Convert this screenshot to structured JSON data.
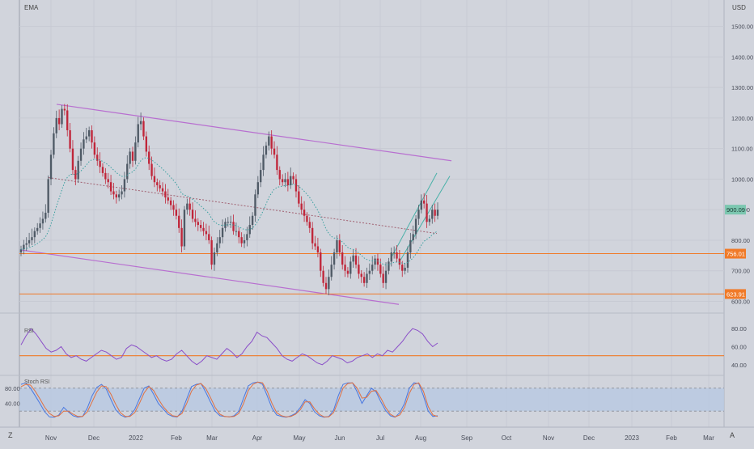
{
  "app": {
    "indicator_label": "EMA",
    "currency": "USD",
    "corner_left": "Z",
    "corner_right": "A"
  },
  "colors": {
    "background": "#d1d4dc",
    "grid": "#c7cad3",
    "axis_text": "#4a4e5a",
    "candle_up": "#4f5a66",
    "candle_down": "#c0263a",
    "channel": "#b86fd0",
    "ema": "#3aa0a0",
    "median": "#a06070",
    "horizontal_level": "#f07a28",
    "rising_channel": "#48b0a8",
    "rsi_line": "#8a4ec8",
    "stoch_k": "#4a78e0",
    "stoch_d": "#e07040",
    "stoch_band": "#b8c8e2",
    "last_price_tag": "#7cc7b0"
  },
  "chart_data": [
    {
      "type": "candlestick",
      "panel": "price",
      "indicators": [
        "EMA"
      ],
      "x_tick_labels": [
        "Nov",
        "Dec",
        "2022",
        "Feb",
        "Mar",
        "Apr",
        "May",
        "Jun",
        "Jul",
        "Aug",
        "Sep",
        "Oct",
        "Nov",
        "Dec",
        "2023",
        "Feb",
        "Mar"
      ],
      "y_tick_labels": [
        "1500.00",
        "1400.00",
        "1300.00",
        "1200.00",
        "1100.00",
        "1000.00",
        "900.00",
        "800.00",
        "700.00",
        "600.00"
      ],
      "y_ticks": [
        1500,
        1400,
        1300,
        1200,
        1100,
        1000,
        900,
        800,
        700,
        600
      ],
      "ylim": [
        580,
        1560
      ],
      "last_price": "900.09",
      "price_levels": [
        {
          "label": "756.01",
          "value": 756.01
        },
        {
          "label": "623.91",
          "value": 623.91
        }
      ],
      "trend_channel": {
        "upper": [
          [
            "Nov",
            1245
          ],
          [
            "Aug end",
            1060
          ]
        ],
        "lower": [
          [
            "Oct",
            765
          ],
          [
            "Jul end",
            590
          ]
        ],
        "median": [
          [
            "Nov",
            1005
          ],
          [
            "Aug end",
            820
          ]
        ]
      },
      "x_range_sessions": [
        0,
        158
      ],
      "closes": [
        770,
        785,
        790,
        800,
        810,
        830,
        840,
        855,
        870,
        890,
        1000,
        1080,
        1150,
        1200,
        1180,
        1230,
        1225,
        1160,
        1100,
        1030,
        1000,
        1060,
        1100,
        1130,
        1140,
        1160,
        1120,
        1080,
        1060,
        1040,
        1020,
        1000,
        990,
        960,
        950,
        940,
        950,
        960,
        1000,
        1050,
        1090,
        1060,
        1120,
        1180,
        1190,
        1140,
        1090,
        1050,
        1010,
        990,
        980,
        970,
        960,
        940,
        930,
        915,
        900,
        880,
        840,
        780,
        900,
        920,
        900,
        870,
        860,
        850,
        840,
        830,
        820,
        800,
        720,
        760,
        790,
        810,
        840,
        860,
        860,
        860,
        830,
        830,
        810,
        790,
        800,
        820,
        850,
        880,
        950,
        990,
        1030,
        1080,
        1110,
        1140,
        1100,
        1080,
        1030,
        1000,
        990,
        1000,
        980,
        1010,
        1000,
        960,
        920,
        900,
        880,
        860,
        840,
        790,
        780,
        760,
        700,
        660,
        640,
        680,
        720,
        760,
        800,
        760,
        720,
        700,
        690,
        730,
        750,
        720,
        690,
        680,
        660,
        690,
        700,
        720,
        740,
        720,
        690,
        660,
        700,
        730,
        760,
        760,
        740,
        720,
        700,
        710,
        760,
        800,
        820,
        870,
        900,
        930,
        920,
        860,
        870,
        900,
        880,
        900
      ]
    },
    {
      "type": "line",
      "panel": "oscillator_1",
      "indicator": "RSI",
      "series_label": "RSI",
      "y_tick_labels": [
        "80.00",
        "60.00",
        "40.00"
      ],
      "y_ticks": [
        80,
        60,
        40
      ],
      "ylim": [
        30,
        90
      ],
      "reference_level": 50,
      "values": [
        62,
        72,
        80,
        74,
        66,
        58,
        54,
        56,
        60,
        52,
        48,
        50,
        46,
        44,
        48,
        52,
        56,
        54,
        50,
        46,
        48,
        58,
        62,
        60,
        56,
        52,
        48,
        50,
        46,
        44,
        46,
        52,
        56,
        50,
        44,
        40,
        44,
        50,
        48,
        46,
        52,
        58,
        54,
        48,
        52,
        60,
        66,
        76,
        72,
        70,
        64,
        58,
        50,
        46,
        44,
        48,
        52,
        50,
        46,
        42,
        40,
        44,
        50,
        48,
        46,
        42,
        44,
        48,
        50,
        52,
        48,
        52,
        50,
        56,
        54,
        60,
        66,
        74,
        80,
        78,
        74,
        66,
        60,
        64
      ]
    },
    {
      "type": "line",
      "panel": "oscillator_2",
      "indicator": "Stochastic RSI",
      "series_label": "Stoch RSI",
      "y_tick_labels": [
        "80.00",
        "40.00"
      ],
      "y_ticks": [
        80,
        40
      ],
      "ylim": [
        -5,
        105
      ],
      "band": [
        20,
        80
      ],
      "series": [
        {
          "name": "K",
          "values": [
            90,
            94,
            80,
            60,
            40,
            18,
            5,
            4,
            10,
            30,
            18,
            8,
            4,
            6,
            28,
            60,
            82,
            90,
            78,
            50,
            24,
            10,
            4,
            8,
            24,
            52,
            80,
            86,
            64,
            40,
            26,
            12,
            6,
            5,
            20,
            52,
            84,
            90,
            92,
            70,
            44,
            20,
            8,
            6,
            5,
            8,
            20,
            54,
            86,
            94,
            96,
            90,
            60,
            28,
            10,
            6,
            4,
            8,
            14,
            30,
            50,
            40,
            18,
            8,
            4,
            6,
            22,
            60,
            90,
            94,
            94,
            70,
            40,
            60,
            80,
            70,
            44,
            22,
            8,
            4,
            16,
            40,
            80,
            94,
            92,
            60,
            20,
            6,
            8
          ]
        },
        {
          "name": "D",
          "values": [
            84,
            90,
            88,
            72,
            52,
            30,
            14,
            6,
            8,
            20,
            20,
            12,
            6,
            6,
            18,
            44,
            70,
            86,
            84,
            64,
            38,
            16,
            6,
            6,
            16,
            40,
            68,
            84,
            74,
            52,
            32,
            18,
            8,
            6,
            14,
            40,
            72,
            88,
            92,
            80,
            56,
            30,
            12,
            6,
            5,
            6,
            14,
            40,
            74,
            90,
            96,
            94,
            72,
            40,
            16,
            8,
            5,
            6,
            12,
            24,
            44,
            44,
            26,
            12,
            5,
            5,
            16,
            46,
            80,
            92,
            94,
            80,
            54,
            56,
            72,
            74,
            54,
            30,
            12,
            5,
            10,
            30,
            66,
            90,
            94,
            72,
            32,
            10,
            6
          ]
        }
      ]
    }
  ]
}
